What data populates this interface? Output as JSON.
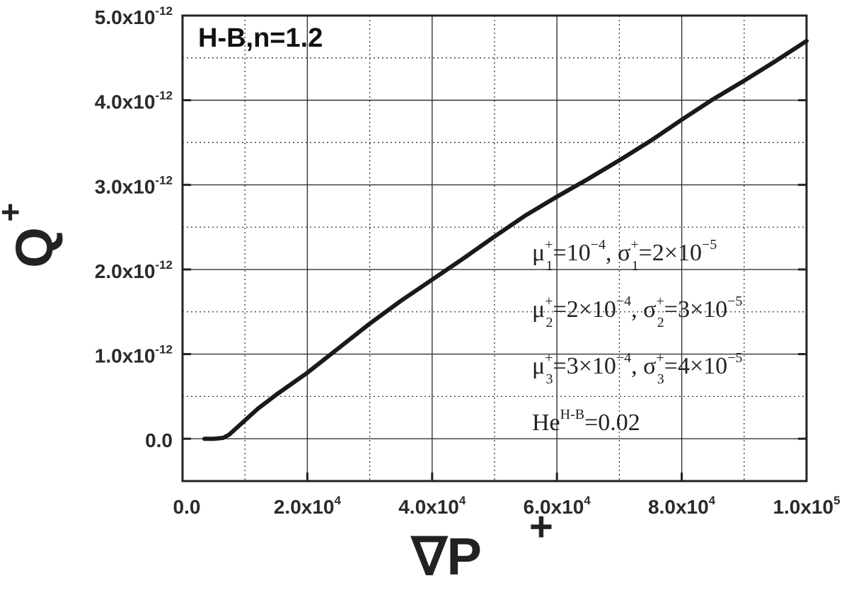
{
  "chart_data": {
    "type": "line",
    "title": "H-B,n=1.2",
    "xlabel": {
      "symbol": "∇P",
      "sup": "+"
    },
    "ylabel": {
      "symbol": "Q",
      "sup": "+"
    },
    "xlim": [
      0,
      100000
    ],
    "ylim": [
      -5e-13,
      5e-12
    ],
    "grid": {
      "major": "solid",
      "minor": "dotted"
    },
    "x_ticks": [
      {
        "mant": "0.0",
        "exp": ""
      },
      {
        "mant": "2.0x10",
        "exp": "4"
      },
      {
        "mant": "4.0x10",
        "exp": "4"
      },
      {
        "mant": "6.0x10",
        "exp": "4"
      },
      {
        "mant": "8.0x10",
        "exp": "4"
      },
      {
        "mant": "1.0x10",
        "exp": "5"
      }
    ],
    "y_ticks": [
      {
        "mant": "0.0",
        "exp": ""
      },
      {
        "mant": "1.0x10",
        "exp": "-12"
      },
      {
        "mant": "2.0x10",
        "exp": "-12"
      },
      {
        "mant": "3.0x10",
        "exp": "-12"
      },
      {
        "mant": "4.0x10",
        "exp": "-12"
      },
      {
        "mant": "5.0x10",
        "exp": "-12"
      }
    ],
    "annotations": [
      "μ1+=10−4, σ1+=2×10−5",
      "μ2+=2×10−4, σ2+=3×10−5",
      "μ3+=3×10−4, σ3+=4×10−5",
      "HeH-B=0.02"
    ],
    "series": [
      {
        "x": [
          3500,
          5000,
          6500,
          7500,
          9000,
          12000,
          15000,
          20000,
          25000,
          30000,
          35000,
          40000,
          45000,
          50000,
          55000,
          60000,
          65000,
          70000,
          75000,
          80000,
          85000,
          90000,
          95000,
          100000
        ],
        "y": [
          0,
          0,
          1e-14,
          5e-14,
          1.5e-13,
          3.5e-13,
          5.2e-13,
          7.8e-13,
          1.07e-12,
          1.36e-12,
          1.63e-12,
          1.88e-12,
          2.13e-12,
          2.39e-12,
          2.64e-12,
          2.86e-12,
          3.07e-12,
          3.29e-12,
          3.52e-12,
          3.77e-12,
          4.01e-12,
          4.23e-12,
          4.46e-12,
          4.7e-12
        ]
      }
    ]
  }
}
